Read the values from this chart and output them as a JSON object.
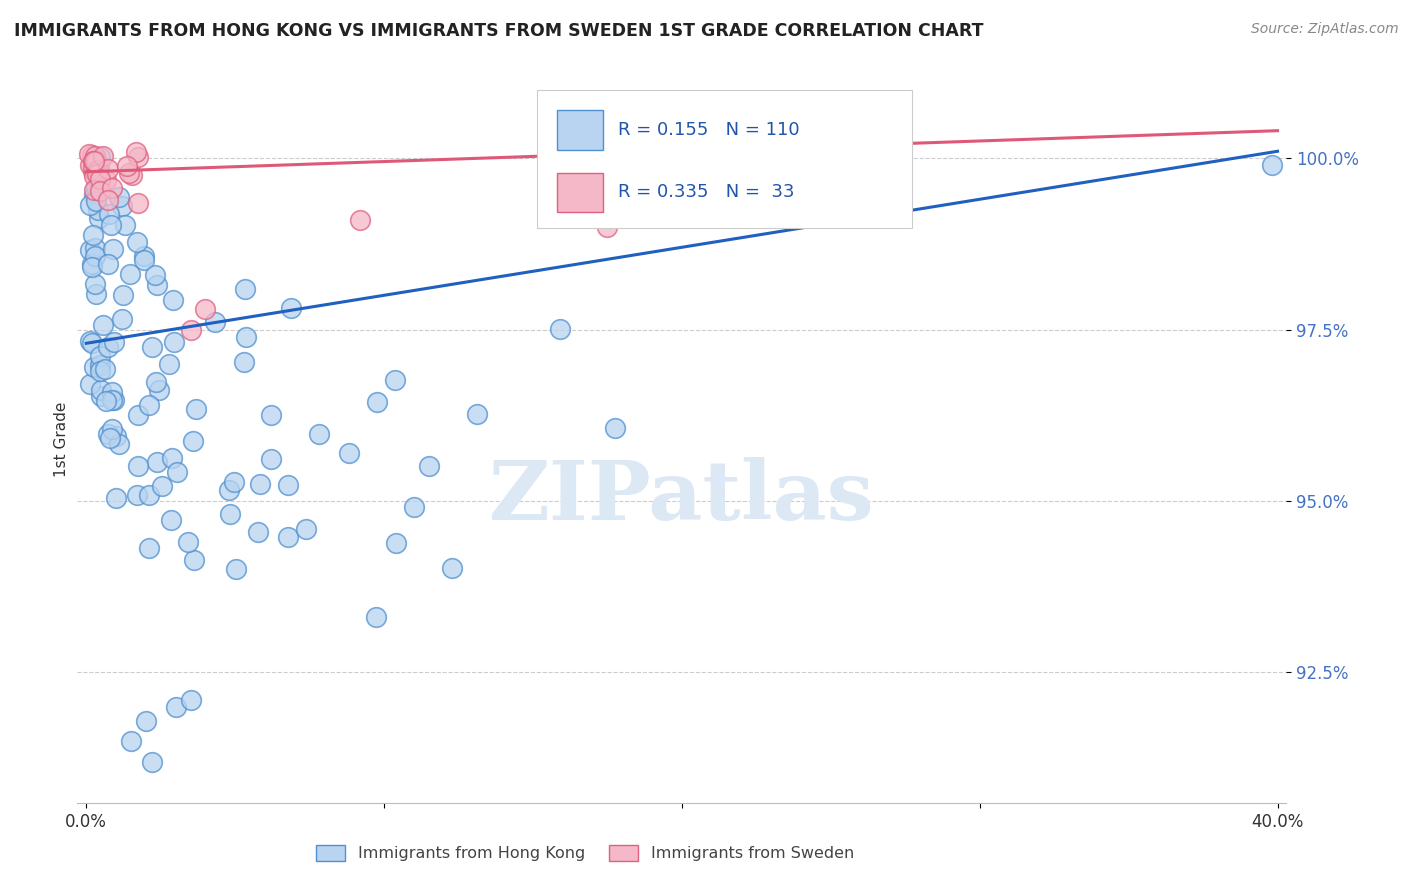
{
  "title": "IMMIGRANTS FROM HONG KONG VS IMMIGRANTS FROM SWEDEN 1ST GRADE CORRELATION CHART",
  "source": "Source: ZipAtlas.com",
  "ylabel": "1st Grade",
  "xlim": [
    -0.003,
    0.403
  ],
  "ylim": [
    0.906,
    1.012
  ],
  "x_ticks": [
    0.0,
    0.1,
    0.2,
    0.3,
    0.4
  ],
  "x_tick_labels": [
    "0.0%",
    "",
    "",
    "",
    "40.0%"
  ],
  "y_ticks": [
    0.925,
    0.95,
    0.975,
    1.0
  ],
  "y_tick_labels": [
    "92.5%",
    "95.0%",
    "97.5%",
    "100.0%"
  ],
  "hk_color": "#b8d4f0",
  "hk_edge_color": "#5090d0",
  "sw_color": "#f4b8c8",
  "sw_edge_color": "#e06080",
  "hk_R": 0.155,
  "hk_N": 110,
  "sw_R": 0.335,
  "sw_N": 33,
  "trend_hk_color": "#2060c0",
  "trend_sw_color": "#e05878",
  "trend_hk_x0": 0.0,
  "trend_hk_y0": 0.973,
  "trend_hk_x1": 0.4,
  "trend_hk_y1": 1.001,
  "trend_sw_x0": 0.0,
  "trend_sw_y0": 0.998,
  "trend_sw_x1": 0.4,
  "trend_sw_y1": 1.004,
  "watermark": "ZIPatlas",
  "watermark_color": "#dde8f5",
  "legend_labels": [
    "Immigrants from Hong Kong",
    "Immigrants from Sweden"
  ]
}
